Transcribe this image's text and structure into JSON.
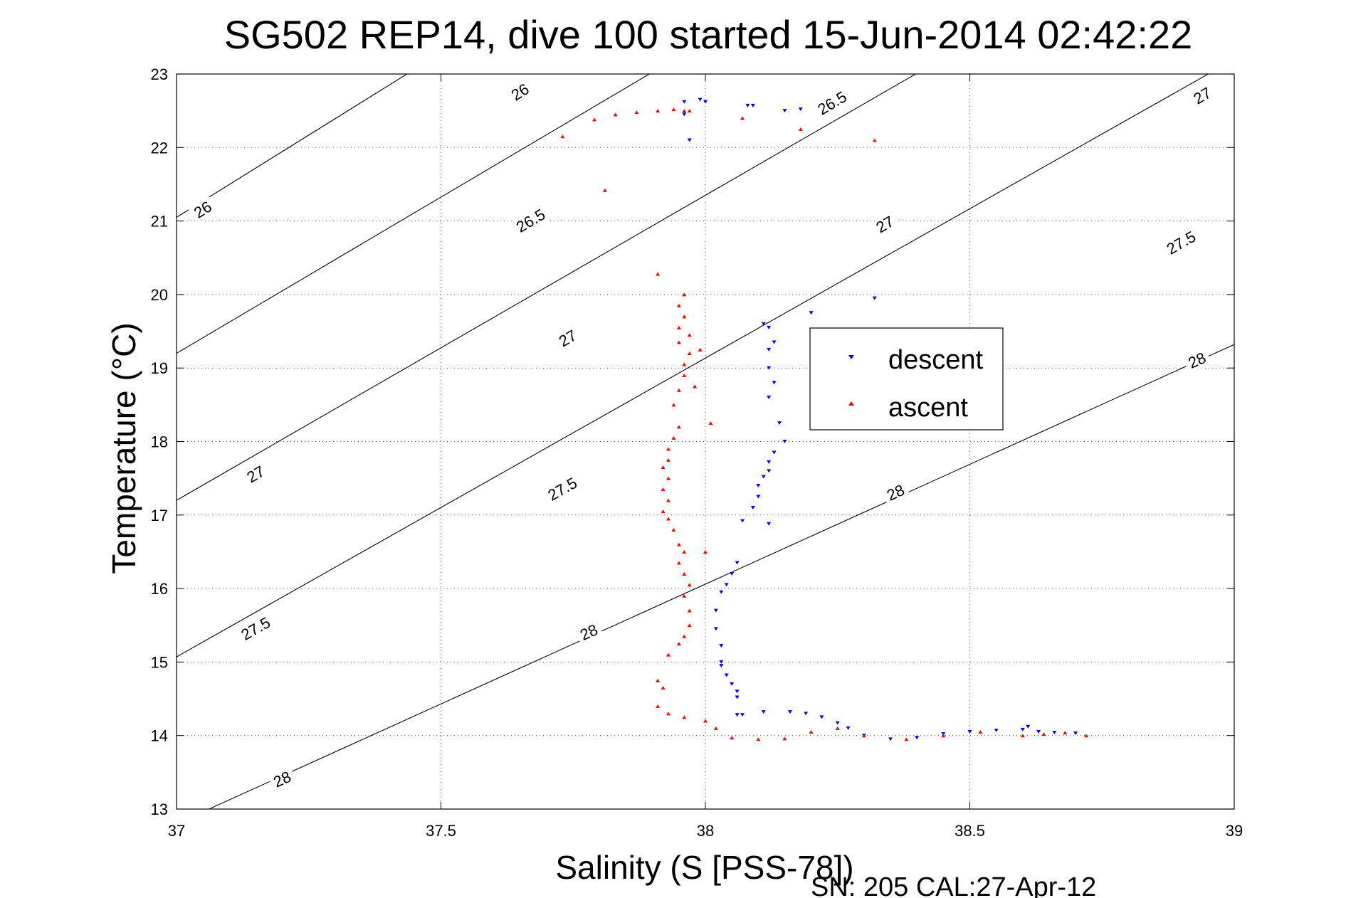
{
  "chart_data": {
    "type": "scatter",
    "title": "SG502 REP14, dive 100 started 15-Jun-2014 02:42:22",
    "xlabel": "Salinity (S [PSS-78])",
    "ylabel": "Temperature (°C)",
    "xlim": [
      37,
      39
    ],
    "ylim": [
      13,
      23
    ],
    "xticks": [
      37,
      37.5,
      38,
      38.5,
      39
    ],
    "xtick_labels": [
      "37",
      "37.5",
      "38",
      "38.5",
      "39"
    ],
    "yticks": [
      13,
      14,
      15,
      16,
      17,
      18,
      19,
      20,
      21,
      22,
      23
    ],
    "ytick_labels": [
      "13",
      "14",
      "15",
      "16",
      "17",
      "18",
      "19",
      "20",
      "21",
      "22",
      "23"
    ],
    "grid": true,
    "grid_style": "dotted",
    "legend": {
      "placement": "center-right",
      "entries": [
        {
          "name": "descent",
          "color": "#0000ff",
          "marker": "triangle-down"
        },
        {
          "name": "ascent",
          "color": "#ff0000",
          "marker": "triangle-up"
        }
      ]
    },
    "footer": "SN: 205  CAL:27-Apr-12",
    "density_contours": [
      {
        "sigma": 26,
        "lines": [
          [
            37.0,
            21.05
          ],
          [
            39.0,
            30.0
          ]
        ],
        "labels": [
          {
            "text": "26",
            "pos": [
              37.05,
              21.15
            ]
          },
          {
            "text": "26",
            "pos": [
              37.65,
              22.75
            ]
          }
        ]
      },
      {
        "sigma": 26.5,
        "lines": [
          [
            37.0,
            19.2
          ],
          [
            39.0,
            27.7
          ]
        ],
        "labels": [
          {
            "text": "26.5",
            "pos": [
              37.67,
              21.0
            ]
          },
          {
            "text": "26.5",
            "pos": [
              38.24,
              22.6
            ]
          }
        ]
      },
      {
        "sigma": 27,
        "lines": [
          [
            37.0,
            17.2
          ],
          [
            39.0,
            25.5
          ]
        ],
        "labels": [
          {
            "text": "27",
            "pos": [
              37.15,
              17.55
            ]
          },
          {
            "text": "27",
            "pos": [
              37.74,
              19.4
            ]
          },
          {
            "text": "27",
            "pos": [
              38.34,
              20.95
            ]
          },
          {
            "text": "27",
            "pos": [
              38.94,
              22.7
            ]
          }
        ]
      },
      {
        "sigma": 27.5,
        "lines": [
          [
            37.0,
            15.07
          ],
          [
            39.0,
            23.2
          ]
        ],
        "labels": [
          {
            "text": "27.5",
            "pos": [
              37.15,
              15.45
            ]
          },
          {
            "text": "27.5",
            "pos": [
              37.73,
              17.35
            ]
          },
          {
            "text": "27.5",
            "pos": [
              38.9,
              20.7
            ]
          }
        ]
      },
      {
        "sigma": 28,
        "lines": [
          [
            37.0,
            12.8
          ],
          [
            39.0,
            19.32
          ]
        ],
        "labels": [
          {
            "text": "28",
            "pos": [
              37.2,
              13.4
            ]
          },
          {
            "text": "28",
            "pos": [
              37.78,
              15.4
            ]
          },
          {
            "text": "28",
            "pos": [
              38.36,
              17.3
            ]
          },
          {
            "text": "28",
            "pos": [
              38.93,
              19.1
            ]
          }
        ]
      }
    ],
    "series": [
      {
        "name": "descent",
        "color": "#0000ff",
        "marker": "triangle-down",
        "points": [
          [
            37.96,
            22.62
          ],
          [
            37.99,
            22.65
          ],
          [
            38.0,
            22.62
          ],
          [
            38.08,
            22.57
          ],
          [
            38.09,
            22.57
          ],
          [
            38.15,
            22.5
          ],
          [
            38.18,
            22.52
          ],
          [
            37.96,
            22.45
          ],
          [
            37.97,
            22.1
          ],
          [
            38.2,
            19.75
          ],
          [
            38.32,
            19.95
          ],
          [
            38.11,
            19.6
          ],
          [
            38.12,
            19.55
          ],
          [
            38.13,
            19.35
          ],
          [
            38.12,
            19.25
          ],
          [
            38.12,
            19.0
          ],
          [
            38.13,
            18.8
          ],
          [
            38.12,
            18.6
          ],
          [
            38.14,
            18.25
          ],
          [
            38.15,
            18.0
          ],
          [
            38.13,
            17.85
          ],
          [
            38.12,
            17.72
          ],
          [
            38.12,
            17.6
          ],
          [
            38.11,
            17.52
          ],
          [
            38.1,
            17.4
          ],
          [
            38.1,
            17.25
          ],
          [
            38.09,
            17.1
          ],
          [
            38.07,
            16.92
          ],
          [
            38.12,
            16.88
          ],
          [
            38.06,
            16.35
          ],
          [
            38.05,
            16.2
          ],
          [
            38.04,
            16.05
          ],
          [
            38.03,
            15.95
          ],
          [
            38.02,
            15.7
          ],
          [
            38.02,
            15.45
          ],
          [
            38.03,
            15.22
          ],
          [
            38.03,
            15.0
          ],
          [
            38.03,
            14.95
          ],
          [
            38.04,
            14.82
          ],
          [
            38.05,
            14.7
          ],
          [
            38.06,
            14.6
          ],
          [
            38.06,
            14.52
          ],
          [
            38.06,
            14.28
          ],
          [
            38.07,
            14.28
          ],
          [
            38.11,
            14.32
          ],
          [
            38.16,
            14.32
          ],
          [
            38.19,
            14.3
          ],
          [
            38.22,
            14.25
          ],
          [
            38.25,
            14.17
          ],
          [
            38.27,
            14.1
          ],
          [
            38.3,
            14.0
          ],
          [
            38.35,
            13.95
          ],
          [
            38.4,
            13.97
          ],
          [
            38.45,
            14.02
          ],
          [
            38.5,
            14.05
          ],
          [
            38.55,
            14.07
          ],
          [
            38.6,
            14.08
          ],
          [
            38.61,
            14.12
          ],
          [
            38.63,
            14.05
          ],
          [
            38.66,
            14.04
          ],
          [
            38.7,
            14.03
          ]
        ]
      },
      {
        "name": "ascent",
        "color": "#ff0000",
        "marker": "triangle-up",
        "points": [
          [
            37.73,
            22.15
          ],
          [
            37.79,
            22.38
          ],
          [
            37.83,
            22.45
          ],
          [
            37.87,
            22.48
          ],
          [
            37.91,
            22.5
          ],
          [
            37.94,
            22.52
          ],
          [
            37.96,
            22.5
          ],
          [
            37.97,
            22.5
          ],
          [
            38.07,
            22.4
          ],
          [
            38.18,
            22.25
          ],
          [
            38.32,
            22.1
          ],
          [
            37.81,
            21.42
          ],
          [
            37.91,
            20.28
          ],
          [
            37.96,
            20.0
          ],
          [
            37.95,
            19.85
          ],
          [
            37.96,
            19.7
          ],
          [
            37.95,
            19.55
          ],
          [
            37.97,
            19.45
          ],
          [
            37.95,
            19.35
          ],
          [
            37.97,
            19.2
          ],
          [
            37.96,
            19.05
          ],
          [
            37.96,
            18.9
          ],
          [
            37.95,
            18.7
          ],
          [
            37.94,
            18.5
          ],
          [
            37.95,
            18.2
          ],
          [
            37.94,
            18.05
          ],
          [
            37.93,
            17.9
          ],
          [
            37.93,
            17.75
          ],
          [
            37.92,
            17.65
          ],
          [
            37.93,
            17.5
          ],
          [
            37.92,
            17.35
          ],
          [
            37.93,
            17.2
          ],
          [
            37.92,
            17.05
          ],
          [
            37.93,
            16.95
          ],
          [
            37.94,
            16.8
          ],
          [
            37.95,
            16.6
          ],
          [
            37.96,
            16.5
          ],
          [
            37.95,
            16.35
          ],
          [
            37.96,
            16.2
          ],
          [
            37.97,
            16.05
          ],
          [
            37.96,
            15.9
          ],
          [
            37.97,
            15.7
          ],
          [
            37.97,
            15.5
          ],
          [
            37.96,
            15.35
          ],
          [
            37.95,
            15.25
          ],
          [
            37.93,
            15.1
          ],
          [
            37.91,
            14.75
          ],
          [
            37.92,
            14.65
          ],
          [
            37.91,
            14.4
          ],
          [
            37.93,
            14.3
          ],
          [
            37.96,
            14.25
          ],
          [
            38.0,
            14.2
          ],
          [
            38.02,
            14.1
          ],
          [
            38.05,
            13.97
          ],
          [
            38.1,
            13.95
          ],
          [
            38.15,
            13.96
          ],
          [
            38.2,
            14.05
          ],
          [
            38.25,
            14.1
          ],
          [
            38.3,
            14.0
          ],
          [
            38.38,
            13.95
          ],
          [
            38.45,
            14.0
          ],
          [
            38.52,
            14.05
          ],
          [
            38.6,
            14.0
          ],
          [
            38.64,
            14.02
          ],
          [
            38.68,
            14.04
          ],
          [
            38.72,
            14.0
          ],
          [
            38.01,
            18.25
          ],
          [
            38.0,
            16.5
          ],
          [
            37.98,
            18.75
          ],
          [
            37.99,
            19.25
          ]
        ]
      }
    ]
  }
}
